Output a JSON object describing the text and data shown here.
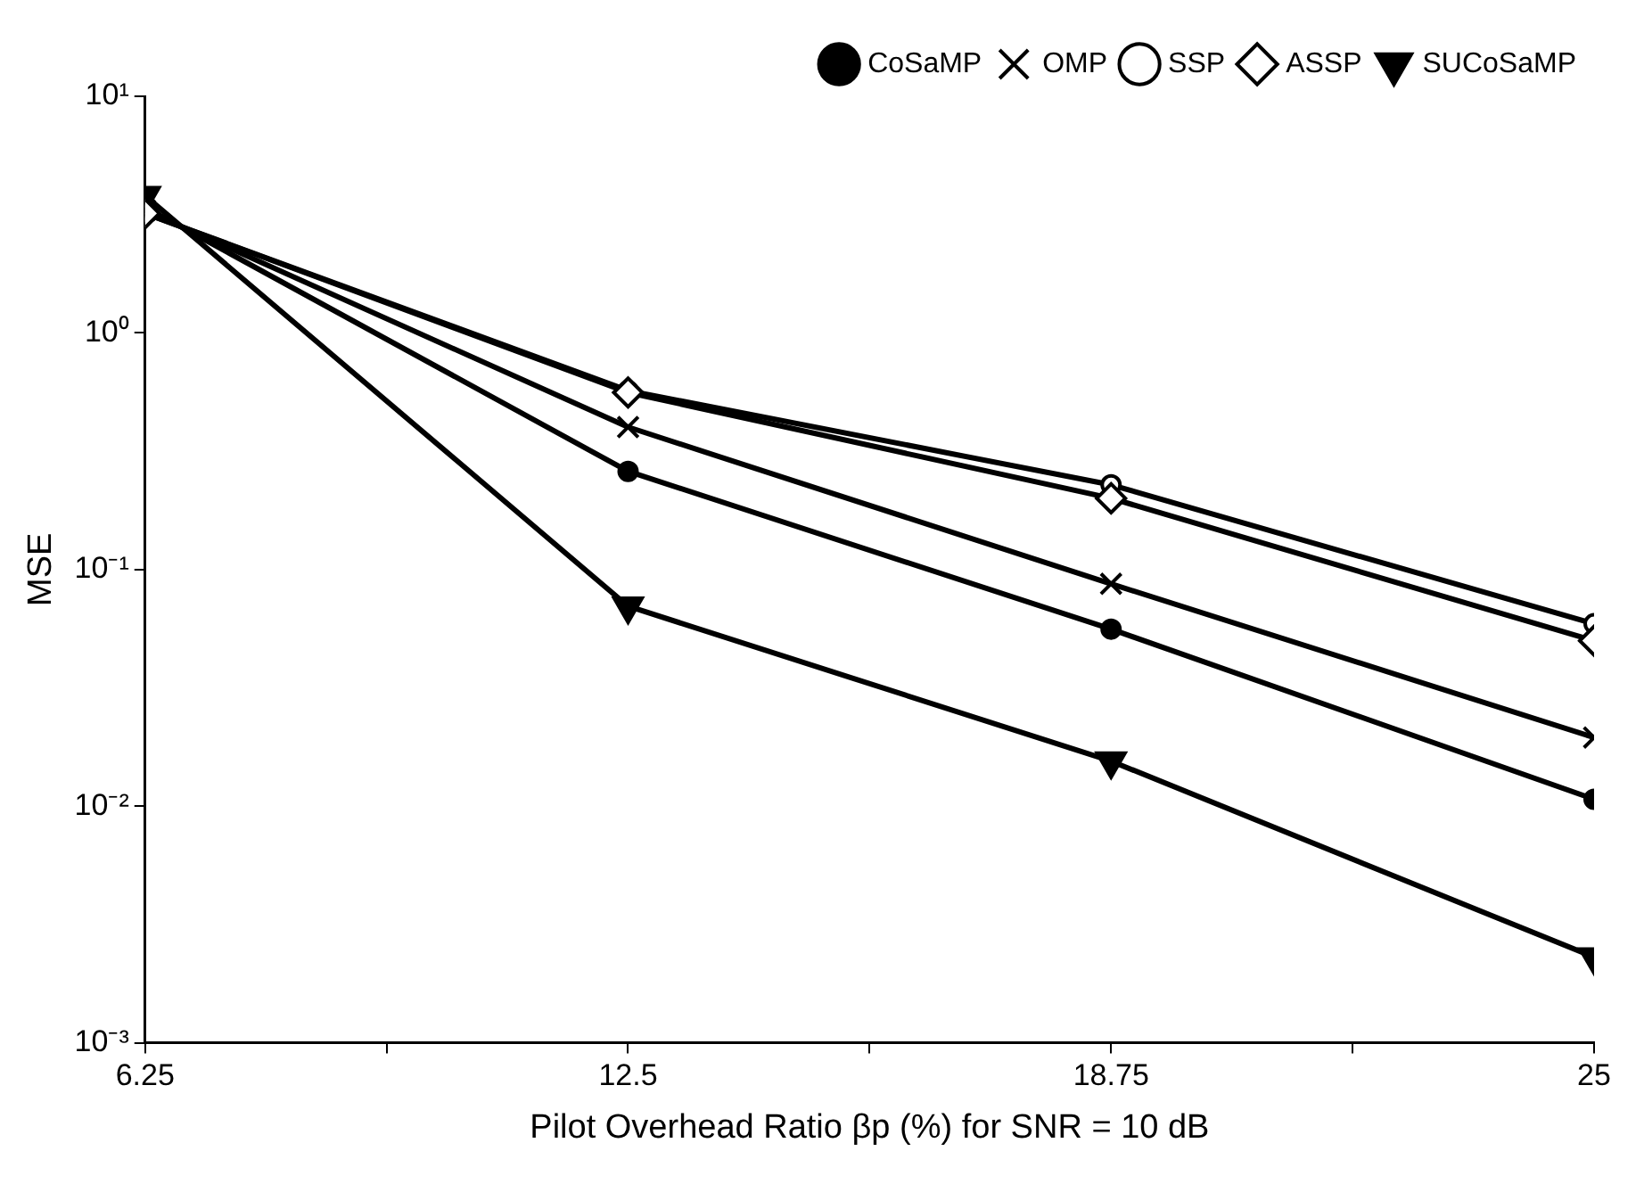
{
  "chart_data": {
    "type": "line",
    "xlabel": "Pilot Overhead Ratio βp (%) for SNR = 10 dB",
    "ylabel": "MSE",
    "x": [
      6.25,
      12.5,
      18.75,
      25
    ],
    "series": [
      {
        "name": "CoSaMP",
        "color": "#000000",
        "marker": "circle",
        "values": [
          3.4,
          0.26,
          0.056,
          0.0107
        ]
      },
      {
        "name": "OMP",
        "color": "#000000",
        "marker": "cross",
        "values": [
          3.3,
          0.4,
          0.087,
          0.0195
        ]
      },
      {
        "name": "SSP",
        "color": "#000000",
        "marker": "circle",
        "values": [
          3.2,
          0.57,
          0.228,
          0.059
        ]
      },
      {
        "name": "ASSP",
        "color": "#000000",
        "marker": "diamond",
        "values": [
          3.2,
          0.56,
          0.2,
          0.05
        ]
      },
      {
        "name": "SUCoSaMP",
        "color": "#000000",
        "marker": "triangle",
        "values": [
          3.8,
          0.07,
          0.0155,
          0.0023
        ]
      }
    ],
    "xlim": [
      6.25,
      25
    ],
    "xticks": [
      6.25,
      {
        "value": 9.375,
        "label": null
      },
      12.5,
      {
        "value": 15.625,
        "label": null
      },
      18.75,
      {
        "value": 21.875,
        "label": null
      },
      25
    ],
    "ylim": [
      0.001,
      10
    ],
    "yticks": [
      {
        "value": 0.001,
        "label": "10⁻³"
      },
      {
        "value": 0.01,
        "label": "10⁻²"
      },
      {
        "value": 0.1,
        "label": "10⁻¹"
      },
      {
        "value": 1,
        "label": "10⁰"
      },
      {
        "value": 10,
        "label": "10¹"
      }
    ],
    "log": "y",
    "grid": false,
    "legend": "top right",
    "line_style": "solid"
  }
}
